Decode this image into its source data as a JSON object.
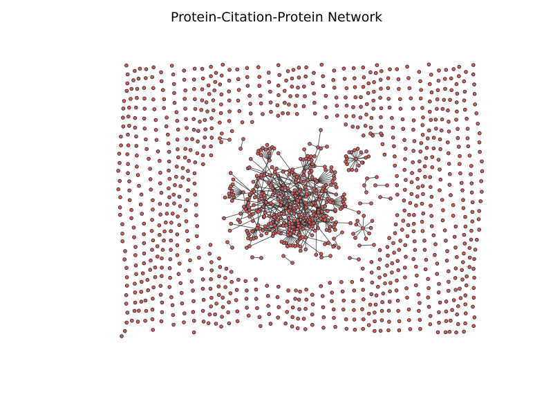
{
  "title": "Protein-Citation-Protein Network",
  "colors": {
    "background": "#ffffff",
    "node_fill": "#cd5c5c",
    "node_stroke": "#222222",
    "edge": "#333333"
  },
  "diagram": {
    "type": "network",
    "layout": "force-directed",
    "components": [
      {
        "kind": "giant-component",
        "description_visible": false
      },
      {
        "kind": "star"
      },
      {
        "kind": "star"
      },
      {
        "kind": "star"
      },
      {
        "kind": "isolated-nodes"
      }
    ]
  }
}
